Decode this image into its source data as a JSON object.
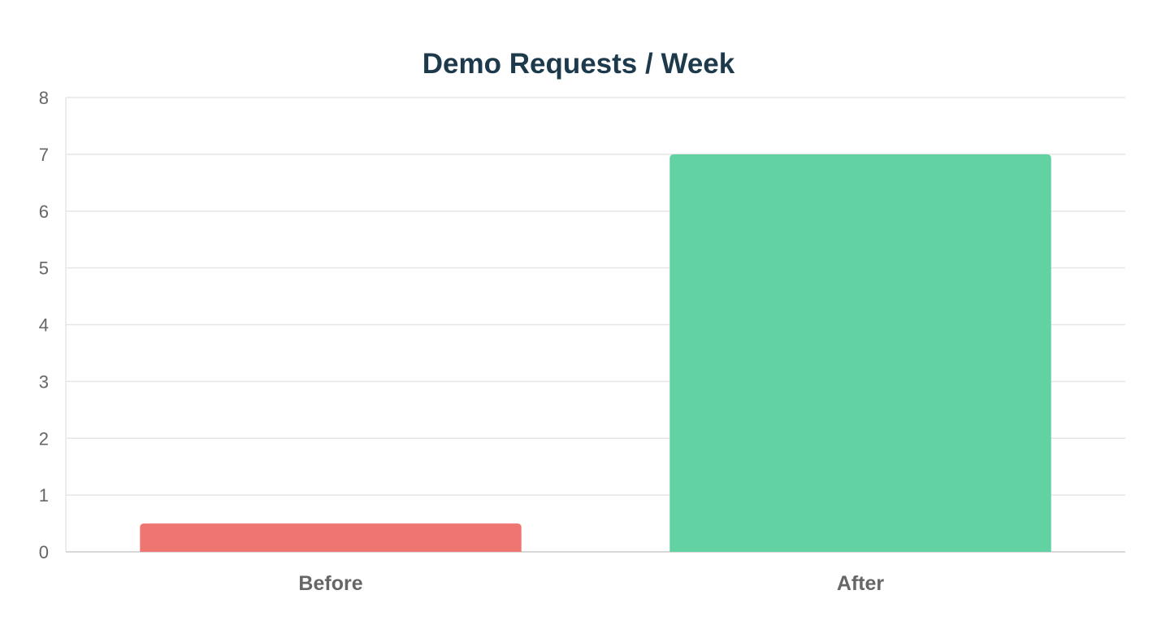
{
  "chart_data": {
    "type": "bar",
    "title": "Demo Requests / Week",
    "categories": [
      "Before",
      "After"
    ],
    "values": [
      0.5,
      7
    ],
    "bar_colors": [
      "#ef7670",
      "#62d2a2"
    ],
    "title_color": "#1c3a4c",
    "ylim": [
      0,
      8
    ],
    "yticks": [
      0,
      1,
      2,
      3,
      4,
      5,
      6,
      7,
      8
    ],
    "xlabel": "",
    "ylabel": "",
    "grid": true,
    "legend": "none"
  }
}
